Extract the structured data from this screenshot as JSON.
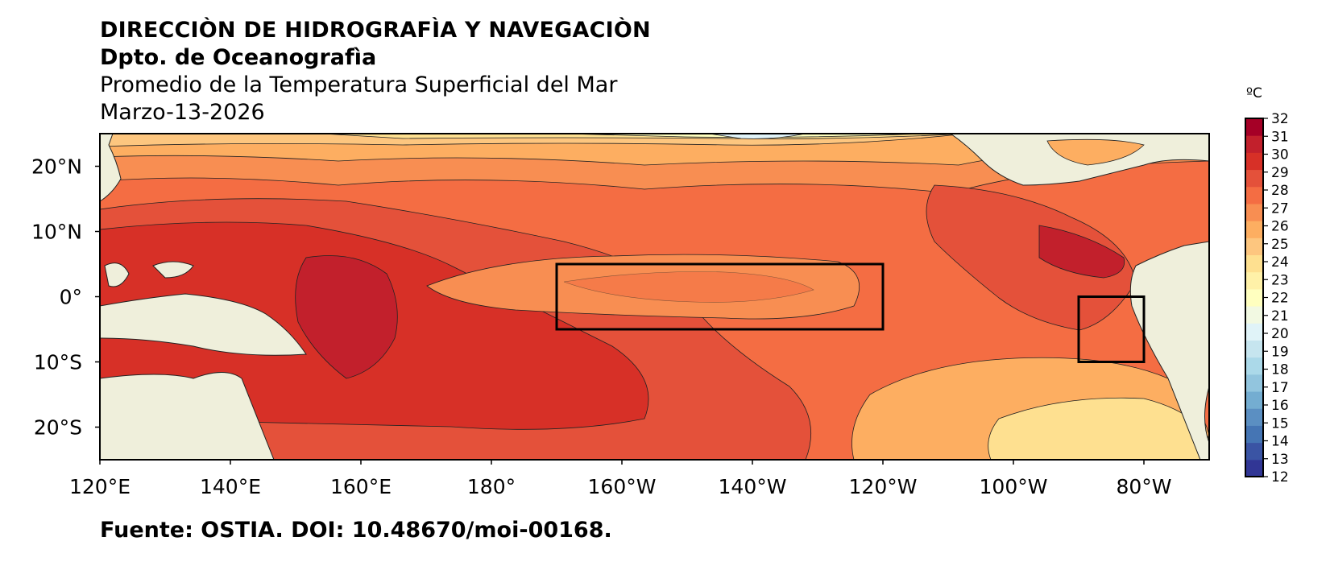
{
  "header": {
    "line1": "DIRECCIÒN DE HIDROGRAFÌA Y NAVEGACIÒN",
    "line2": "Dpto. de Oceanografìa",
    "line3": "Promedio de la Temperatura Superficial del Mar",
    "line4": "Marzo-13-2026"
  },
  "map": {
    "lon_range": [
      120,
      290
    ],
    "lat_range": [
      -25,
      25
    ],
    "x_ticks": [
      {
        "lon": 120,
        "label": "120°E"
      },
      {
        "lon": 140,
        "label": "140°E"
      },
      {
        "lon": 160,
        "label": "160°E"
      },
      {
        "lon": 180,
        "label": "180°"
      },
      {
        "lon": 200,
        "label": "160°W"
      },
      {
        "lon": 220,
        "label": "140°W"
      },
      {
        "lon": 240,
        "label": "120°W"
      },
      {
        "lon": 260,
        "label": "100°W"
      },
      {
        "lon": 280,
        "label": "80°W"
      }
    ],
    "y_ticks": [
      {
        "lat": 20,
        "label": "20°N"
      },
      {
        "lat": 10,
        "label": "10°N"
      },
      {
        "lat": 0,
        "label": "0°"
      },
      {
        "lat": -10,
        "label": "10°S"
      },
      {
        "lat": -20,
        "label": "20°S"
      }
    ],
    "regions": [
      {
        "name": "nino-3.4-box",
        "lon": [
          190,
          240
        ],
        "lat": [
          -5,
          5
        ]
      },
      {
        "name": "nino-1+2-box",
        "lon": [
          270,
          280
        ],
        "lat": [
          -10,
          0
        ]
      }
    ],
    "land_color": "#efefdb",
    "ocean_base_color": "#f46d43"
  },
  "colorbar": {
    "unit": "ºC",
    "min": 12,
    "max": 32,
    "labels": [
      "32",
      "31",
      "30",
      "29",
      "28",
      "27",
      "26",
      "25",
      "24",
      "23",
      "22",
      "21",
      "20",
      "19",
      "18",
      "17",
      "16",
      "15",
      "14",
      "13",
      "12"
    ],
    "colors": [
      "#313695",
      "#3a54a4",
      "#4575b4",
      "#5b8fc2",
      "#74add1",
      "#92c5de",
      "#abd9e9",
      "#c6e5ef",
      "#e0f3f8",
      "#f2f9e2",
      "#ffffbf",
      "#fff1a8",
      "#fee090",
      "#fdc67f",
      "#fdae61",
      "#f88e52",
      "#f46d43",
      "#e4513a",
      "#d73027",
      "#c2202c",
      "#a50026"
    ]
  },
  "footer": {
    "source": "Fuente: OSTIA. DOI: 10.48670/moi-00168."
  }
}
